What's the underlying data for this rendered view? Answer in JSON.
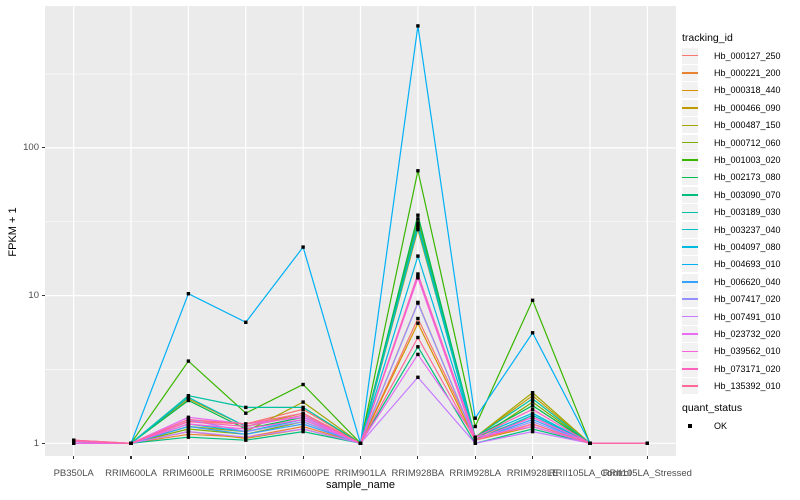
{
  "figure": {
    "panel_background": "#EBEBEB",
    "gridline_color": "#FFFFFF",
    "tick_color": "#333333",
    "axis_text_color": "#4D4D4D",
    "point_color": "#000000"
  },
  "legend": {
    "tracking_title": "tracking_id",
    "quant_title": "quant_status",
    "quant_items": [
      {
        "label": "OK",
        "marker": "black-square"
      }
    ]
  },
  "chart_data": {
    "type": "line",
    "title": "",
    "xlabel": "sample_name",
    "ylabel": "FPKM + 1",
    "y_scale": "log10",
    "y_ticks": [
      1,
      10,
      100
    ],
    "y_minor_ticks": [
      3.162,
      31.62,
      316.2
    ],
    "ylim": [
      0.82,
      912
    ],
    "grid": true,
    "legend_position": "right",
    "point_marker": "filled-square",
    "categories": [
      "PB350LA",
      "RRIM600LA",
      "RRIM600LE",
      "RRIM600SE",
      "RRIM600PE",
      "RRIM901LA",
      "RRIM928BA",
      "RRIM928LA",
      "RRIM928LE",
      "RRII105LA_Control",
      "RRII105LA_Stressed"
    ],
    "series": [
      {
        "name": "Hb_000127_250",
        "color": "#F8766D",
        "values": [
          1.05,
          1,
          1.41,
          1.35,
          1.7,
          1,
          7,
          1.1,
          1.5,
          1,
          1
        ]
      },
      {
        "name": "Hb_000221_200",
        "color": "#EA8331",
        "values": [
          1,
          1,
          1.15,
          1.1,
          1.3,
          1,
          9,
          1.05,
          1.35,
          1,
          1
        ]
      },
      {
        "name": "Hb_000318_440",
        "color": "#D89000",
        "values": [
          1,
          1,
          1.2,
          1.08,
          1.25,
          1,
          6.5,
          1.05,
          1.3,
          1,
          1
        ]
      },
      {
        "name": "Hb_000466_090",
        "color": "#C09B00",
        "values": [
          1,
          1,
          2,
          1.3,
          1.6,
          1,
          28,
          1.1,
          2.1,
          1,
          1
        ]
      },
      {
        "name": "Hb_000487_150",
        "color": "#A3A500",
        "values": [
          1,
          1,
          1.3,
          1.2,
          1.9,
          1,
          30,
          1.1,
          2.2,
          1,
          1
        ]
      },
      {
        "name": "Hb_000712_060",
        "color": "#7CAE00",
        "values": [
          1,
          1,
          1.25,
          1.15,
          1.4,
          1,
          33,
          1.05,
          1.9,
          1,
          1
        ]
      },
      {
        "name": "Hb_001003_020",
        "color": "#39B600",
        "values": [
          1,
          1,
          3.6,
          1.6,
          2.5,
          1,
          70,
          1.3,
          9.3,
          1,
          1
        ]
      },
      {
        "name": "Hb_002173_080",
        "color": "#00BB4E",
        "values": [
          1,
          1,
          1.95,
          1.25,
          1.5,
          1,
          35,
          1.1,
          1.8,
          1,
          1
        ]
      },
      {
        "name": "Hb_003090_070",
        "color": "#00BF7D",
        "values": [
          1,
          1,
          1.1,
          1.05,
          1.2,
          1,
          4.5,
          1,
          1.25,
          1,
          1
        ]
      },
      {
        "name": "Hb_003189_030",
        "color": "#00C1A3",
        "values": [
          1,
          1,
          2.1,
          1.75,
          1.75,
          1,
          31,
          1.1,
          2,
          1,
          1
        ]
      },
      {
        "name": "Hb_003237_040",
        "color": "#00BFC4",
        "values": [
          1,
          1,
          2.05,
          1.3,
          1.55,
          1,
          29,
          1.05,
          1.55,
          1,
          1
        ]
      },
      {
        "name": "Hb_004097_080",
        "color": "#00BAE0",
        "values": [
          1,
          1,
          1.35,
          1.2,
          1.45,
          1,
          18.5,
          1.1,
          1.6,
          1,
          1
        ]
      },
      {
        "name": "Hb_004693_010",
        "color": "#00B0F6",
        "values": [
          1,
          1,
          10.3,
          6.6,
          21.3,
          1,
          670,
          1.48,
          5.6,
          1,
          1
        ]
      },
      {
        "name": "Hb_006620_040",
        "color": "#35A2FF",
        "values": [
          1,
          1,
          1.3,
          1.15,
          1.35,
          1,
          13.5,
          1.05,
          1.45,
          1,
          1
        ]
      },
      {
        "name": "Hb_007417_020",
        "color": "#9590FF",
        "values": [
          1.03,
          1,
          1.45,
          1.2,
          1.4,
          1,
          8.9,
          1.05,
          1.4,
          1,
          1
        ]
      },
      {
        "name": "Hb_007491_010",
        "color": "#C77CFF",
        "values": [
          1,
          1,
          1.2,
          1.1,
          1.25,
          1,
          2.8,
          1,
          1.2,
          1,
          1
        ]
      },
      {
        "name": "Hb_023732_020",
        "color": "#E76BF3",
        "values": [
          1.05,
          1,
          1.5,
          1.35,
          1.5,
          1,
          4,
          1.1,
          1.3,
          1,
          1
        ]
      },
      {
        "name": "Hb_039562_010",
        "color": "#FA62DB",
        "values": [
          1,
          1,
          1.35,
          1.25,
          1.45,
          1,
          13.2,
          1.05,
          1.5,
          1,
          1
        ]
      },
      {
        "name": "Hb_073171_020",
        "color": "#FF62BC",
        "values": [
          1.03,
          1,
          1.4,
          1.3,
          1.55,
          1,
          14,
          1.1,
          1.7,
          1,
          1
        ]
      },
      {
        "name": "Hb_135392_010",
        "color": "#FF6A98",
        "values": [
          1.05,
          1,
          1.45,
          1.35,
          1.6,
          1,
          5.2,
          1.05,
          1.35,
          1,
          1
        ]
      }
    ]
  }
}
